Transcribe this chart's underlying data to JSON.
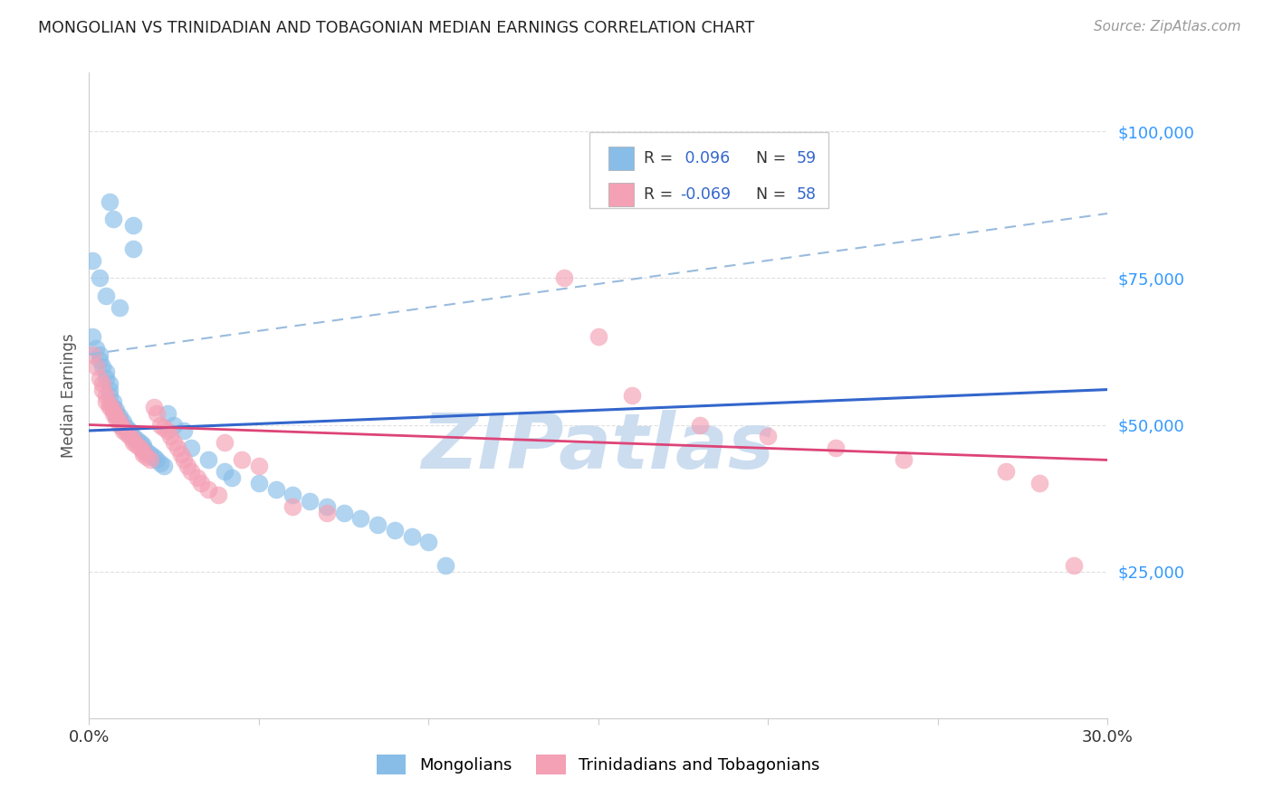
{
  "title": "MONGOLIAN VS TRINIDADIAN AND TOBAGONIAN MEDIAN EARNINGS CORRELATION CHART",
  "source": "Source: ZipAtlas.com",
  "ylabel": "Median Earnings",
  "legend_r_mon": "0.096",
  "legend_n_mon": "59",
  "legend_r_tri": "-0.069",
  "legend_n_tri": "58",
  "mongolian_color": "#88bde8",
  "trinidadian_color": "#f4a0b5",
  "trend_mon_color": "#3366cc",
  "trend_tri_color": "#dd4477",
  "trend_dash_color": "#99bbdd",
  "legend_value_color": "#3366cc",
  "watermark_color": "#ccddf0",
  "ytick_color": "#3399ff",
  "background_color": "#ffffff",
  "grid_color": "#e0e0e0",
  "title_color": "#222222",
  "source_color": "#999999",
  "ylabel_color": "#555555",
  "xtick_color": "#333333",
  "mon_x": [
    0.006,
    0.007,
    0.013,
    0.013,
    0.001,
    0.003,
    0.005,
    0.009,
    0.001,
    0.002,
    0.003,
    0.003,
    0.004,
    0.005,
    0.005,
    0.006,
    0.006,
    0.006,
    0.007,
    0.007,
    0.008,
    0.008,
    0.009,
    0.009,
    0.01,
    0.01,
    0.011,
    0.012,
    0.012,
    0.013,
    0.014,
    0.015,
    0.016,
    0.016,
    0.017,
    0.018,
    0.019,
    0.02,
    0.021,
    0.022,
    0.023,
    0.025,
    0.028,
    0.03,
    0.035,
    0.04,
    0.042,
    0.05,
    0.055,
    0.06,
    0.065,
    0.07,
    0.075,
    0.08,
    0.085,
    0.09,
    0.095,
    0.1,
    0.105
  ],
  "mon_y": [
    88000,
    85000,
    84000,
    80000,
    78000,
    75000,
    72000,
    70000,
    65000,
    63000,
    62000,
    61000,
    60000,
    59000,
    58000,
    57000,
    56000,
    55000,
    54000,
    53000,
    52500,
    52000,
    51500,
    51000,
    50500,
    50000,
    49500,
    49000,
    48500,
    48000,
    47500,
    47000,
    46500,
    46000,
    45500,
    45000,
    44500,
    44000,
    43500,
    43000,
    52000,
    50000,
    49000,
    46000,
    44000,
    42000,
    41000,
    40000,
    39000,
    38000,
    37000,
    36000,
    35000,
    34000,
    33000,
    32000,
    31000,
    30000,
    26000
  ],
  "tri_x": [
    0.001,
    0.002,
    0.003,
    0.004,
    0.004,
    0.005,
    0.005,
    0.006,
    0.006,
    0.007,
    0.007,
    0.008,
    0.008,
    0.009,
    0.009,
    0.01,
    0.01,
    0.011,
    0.012,
    0.013,
    0.013,
    0.014,
    0.015,
    0.016,
    0.016,
    0.017,
    0.018,
    0.019,
    0.02,
    0.021,
    0.022,
    0.023,
    0.024,
    0.025,
    0.026,
    0.027,
    0.028,
    0.029,
    0.03,
    0.032,
    0.033,
    0.035,
    0.038,
    0.04,
    0.045,
    0.05,
    0.06,
    0.07,
    0.14,
    0.15,
    0.16,
    0.18,
    0.2,
    0.22,
    0.24,
    0.27,
    0.28,
    0.29
  ],
  "tri_y": [
    62000,
    60000,
    58000,
    57000,
    56000,
    55000,
    54000,
    53500,
    53000,
    52500,
    52000,
    51500,
    51000,
    50500,
    50000,
    49500,
    49000,
    48500,
    48000,
    47500,
    47000,
    46500,
    46000,
    45500,
    45000,
    44500,
    44000,
    53000,
    52000,
    50000,
    49500,
    49000,
    48000,
    47000,
    46000,
    45000,
    44000,
    43000,
    42000,
    41000,
    40000,
    39000,
    38000,
    47000,
    44000,
    43000,
    36000,
    35000,
    75000,
    65000,
    55000,
    50000,
    48000,
    46000,
    44000,
    42000,
    40000,
    26000
  ],
  "mon_trend": [
    49000,
    56000
  ],
  "tri_trend": [
    50000,
    44000
  ],
  "dash_line": [
    62000,
    86000
  ],
  "xlim": [
    0.0,
    0.3
  ],
  "ylim": [
    0,
    110000
  ],
  "yticks": [
    0,
    25000,
    50000,
    75000,
    100000
  ],
  "ytick_labels": [
    "",
    "$25,000",
    "$50,000",
    "$75,000",
    "$100,000"
  ]
}
